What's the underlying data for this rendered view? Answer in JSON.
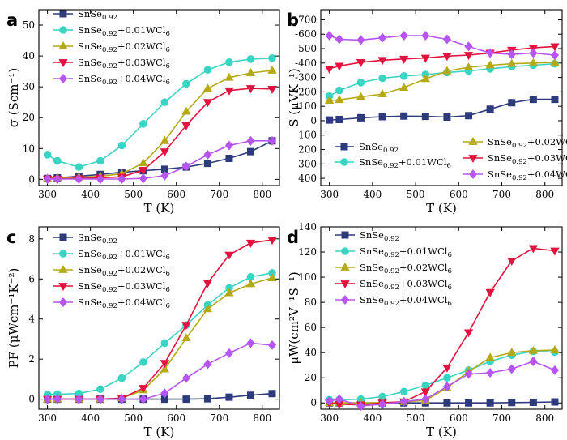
{
  "colors": {
    "SnSe0.92": "#2d3a7c",
    "+0.01WCl6": "#3ad4c4",
    "+0.02WCl6": "#b5aa16",
    "+0.03WCl6": "#e3123f",
    "+0.04WCl6": "#b755f2"
  },
  "legend_labels": {
    "base": "SnSe",
    "sub": "0.92",
    "suffix_01": "+0.01WCl",
    "suffix_02": "+0.02WCl",
    "suffix_03": "+0.03WCl",
    "suffix_04": "+0.04WCl",
    "suffix_sub": "6"
  },
  "chart_data": [
    {
      "panel": "a",
      "type": "line",
      "xlabel": "T (K)",
      "ylabel": "σ (Scm⁻¹)",
      "xlim": [
        280,
        840
      ],
      "ylim": [
        -2,
        55
      ],
      "xticks": [
        300,
        400,
        500,
        600,
        700,
        800
      ],
      "yticks": [
        0,
        10,
        20,
        30,
        40,
        50
      ],
      "legend_position": "top-left",
      "series": [
        {
          "key": "SnSe0.92",
          "marker": "square",
          "x": [
            300,
            323,
            373,
            423,
            473,
            523,
            573,
            623,
            673,
            723,
            773,
            823
          ],
          "y": [
            0.3,
            0.5,
            1.0,
            1.6,
            2.3,
            2.8,
            3.3,
            4.0,
            5.2,
            6.8,
            9.0,
            12.5
          ]
        },
        {
          "key": "+0.01WCl6",
          "marker": "circle",
          "x": [
            300,
            323,
            373,
            423,
            473,
            523,
            573,
            623,
            673,
            723,
            773,
            823
          ],
          "y": [
            8.0,
            6.0,
            4.0,
            6.0,
            11.0,
            18.0,
            25.0,
            31.0,
            35.5,
            38.0,
            39.0,
            39.3
          ]
        },
        {
          "key": "+0.02WCl6",
          "marker": "triangle-up",
          "x": [
            300,
            323,
            373,
            423,
            473,
            523,
            573,
            623,
            673,
            723,
            773,
            823
          ],
          "y": [
            0.3,
            0.5,
            0.7,
            1.0,
            1.8,
            5.3,
            12.5,
            22.0,
            29.5,
            33.0,
            34.5,
            35.3
          ]
        },
        {
          "key": "+0.03WCl6",
          "marker": "triangle-down",
          "x": [
            300,
            323,
            373,
            423,
            473,
            523,
            573,
            623,
            673,
            723,
            773,
            823
          ],
          "y": [
            0.2,
            0.2,
            0.3,
            0.5,
            0.8,
            3.0,
            9.0,
            17.5,
            25.0,
            28.8,
            29.5,
            29.3
          ]
        },
        {
          "key": "+0.04WCl6",
          "marker": "diamond",
          "x": [
            300,
            323,
            373,
            423,
            473,
            523,
            573,
            623,
            673,
            723,
            773,
            823
          ],
          "y": [
            0.1,
            0.1,
            0.1,
            0.1,
            0.1,
            0.3,
            1.2,
            4.2,
            8.0,
            11.0,
            12.5,
            12.5
          ]
        }
      ]
    },
    {
      "panel": "b",
      "type": "line",
      "xlabel": "T (K)",
      "ylabel": "S (μVK⁻¹)",
      "xlim": [
        280,
        840
      ],
      "ylim": [
        -770,
        450
      ],
      "inverted_y": true,
      "xticks": [
        300,
        400,
        500,
        600,
        700,
        800
      ],
      "yticks": [
        -700,
        -600,
        -500,
        -400,
        -300,
        -200,
        -100,
        0,
        100,
        200,
        300,
        400
      ],
      "legend_position": "bottom",
      "series": [
        {
          "key": "SnSe0.92",
          "marker": "square",
          "x": [
            300,
            323,
            373,
            423,
            473,
            523,
            573,
            623,
            673,
            723,
            773,
            823
          ],
          "y": [
            -5,
            -8,
            -20,
            -28,
            -32,
            -30,
            -25,
            -35,
            -80,
            -125,
            -148,
            -148
          ]
        },
        {
          "key": "+0.01WCl6",
          "marker": "circle",
          "x": [
            300,
            323,
            373,
            423,
            473,
            523,
            573,
            623,
            673,
            723,
            773,
            823
          ],
          "y": [
            -170,
            -210,
            -265,
            -295,
            -310,
            -320,
            -335,
            -345,
            -360,
            -375,
            -385,
            -395
          ]
        },
        {
          "key": "+0.02WCl6",
          "marker": "triangle-up",
          "x": [
            300,
            323,
            373,
            423,
            473,
            523,
            573,
            623,
            673,
            723,
            773,
            823
          ],
          "y": [
            -140,
            -145,
            -165,
            -185,
            -230,
            -290,
            -345,
            -370,
            -385,
            -395,
            -400,
            -405
          ]
        },
        {
          "key": "+0.03WCl6",
          "marker": "triangle-down",
          "x": [
            300,
            323,
            373,
            423,
            473,
            523,
            573,
            623,
            673,
            723,
            773,
            823
          ],
          "y": [
            -360,
            -380,
            -405,
            -420,
            -428,
            -435,
            -448,
            -455,
            -470,
            -490,
            -505,
            -515
          ]
        },
        {
          "key": "+0.04WCl6",
          "marker": "diamond",
          "x": [
            300,
            323,
            373,
            423,
            473,
            523,
            573,
            623,
            673,
            723,
            773,
            823
          ],
          "y": [
            -590,
            -565,
            -560,
            -575,
            -590,
            -590,
            -565,
            -515,
            -470,
            -460,
            -470,
            -455
          ]
        }
      ]
    },
    {
      "panel": "c",
      "type": "line",
      "xlabel": "T (K)",
      "ylabel": "PF (μWcm⁻¹K⁻²)",
      "xlim": [
        280,
        840
      ],
      "ylim": [
        -0.5,
        8.6
      ],
      "xticks": [
        300,
        400,
        500,
        600,
        700,
        800
      ],
      "yticks": [
        0,
        2,
        4,
        6,
        8
      ],
      "legend_position": "top-left",
      "series": [
        {
          "key": "SnSe0.92",
          "marker": "square",
          "x": [
            300,
            323,
            373,
            423,
            473,
            523,
            573,
            623,
            673,
            723,
            773,
            823
          ],
          "y": [
            0.0,
            0.0,
            0.0,
            0.0,
            0.0,
            0.0,
            0.0,
            0.0,
            0.02,
            0.1,
            0.2,
            0.28
          ]
        },
        {
          "key": "+0.01WCl6",
          "marker": "circle",
          "x": [
            300,
            323,
            373,
            423,
            473,
            523,
            573,
            623,
            673,
            723,
            773,
            823
          ],
          "y": [
            0.23,
            0.25,
            0.28,
            0.5,
            1.05,
            1.85,
            2.8,
            3.7,
            4.7,
            5.55,
            6.1,
            6.3
          ]
        },
        {
          "key": "+0.02WCl6",
          "marker": "triangle-up",
          "x": [
            300,
            323,
            373,
            423,
            473,
            523,
            573,
            623,
            673,
            723,
            773,
            823
          ],
          "y": [
            0.0,
            0.0,
            0.0,
            0.0,
            0.05,
            0.45,
            1.5,
            3.05,
            4.5,
            5.3,
            5.75,
            6.05
          ]
        },
        {
          "key": "+0.03WCl6",
          "marker": "triangle-down",
          "x": [
            300,
            323,
            373,
            423,
            473,
            523,
            573,
            623,
            673,
            723,
            773,
            823
          ],
          "y": [
            0.0,
            0.0,
            0.0,
            0.0,
            0.05,
            0.55,
            1.8,
            3.7,
            5.8,
            7.2,
            7.8,
            7.95
          ]
        },
        {
          "key": "+0.04WCl6",
          "marker": "diamond",
          "x": [
            300,
            323,
            373,
            423,
            473,
            523,
            573,
            623,
            673,
            723,
            773,
            823
          ],
          "y": [
            0.0,
            0.0,
            0.0,
            0.0,
            0.0,
            0.0,
            0.3,
            1.05,
            1.75,
            2.3,
            2.8,
            2.7
          ]
        }
      ]
    },
    {
      "panel": "d",
      "type": "line",
      "xlabel": "T (K)",
      "ylabel": "μW(cm²V⁻¹S⁻¹)",
      "xlim": [
        280,
        840
      ],
      "ylim": [
        -5,
        140
      ],
      "xticks": [
        300,
        400,
        500,
        600,
        700,
        800
      ],
      "yticks": [
        0,
        20,
        40,
        60,
        80,
        100,
        120,
        140
      ],
      "legend_position": "top-left",
      "series": [
        {
          "key": "SnSe0.92",
          "marker": "square",
          "x": [
            300,
            323,
            373,
            423,
            473,
            523,
            573,
            623,
            673,
            723,
            773,
            823
          ],
          "y": [
            0,
            0,
            0,
            0,
            0,
            0,
            0,
            0,
            0,
            0.3,
            0.5,
            0.8
          ]
        },
        {
          "key": "+0.01WCl6",
          "marker": "circle",
          "x": [
            300,
            323,
            373,
            423,
            473,
            523,
            573,
            623,
            673,
            723,
            773,
            823
          ],
          "y": [
            2.5,
            2.5,
            3.0,
            5.0,
            9.0,
            14.0,
            20.0,
            26.0,
            33.0,
            38.0,
            41.0,
            40.5
          ]
        },
        {
          "key": "+0.02WCl6",
          "marker": "triangle-up",
          "x": [
            300,
            323,
            373,
            423,
            473,
            523,
            573,
            623,
            673,
            723,
            773,
            823
          ],
          "y": [
            0.0,
            0.0,
            0.0,
            0.3,
            0.8,
            2.0,
            12.0,
            25.0,
            36.0,
            40.0,
            41.5,
            42.0
          ]
        },
        {
          "key": "+0.03WCl6",
          "marker": "triangle-down",
          "x": [
            300,
            323,
            373,
            423,
            473,
            523,
            573,
            623,
            673,
            723,
            773,
            823
          ],
          "y": [
            0.0,
            -1.0,
            -1.5,
            0.0,
            1.0,
            9.0,
            28.0,
            56.0,
            88.0,
            113.0,
            123.0,
            121.0
          ]
        },
        {
          "key": "+0.04WCl6",
          "marker": "diamond",
          "x": [
            300,
            323,
            373,
            423,
            473,
            523,
            573,
            623,
            673,
            723,
            773,
            823
          ],
          "y": [
            1.5,
            3.0,
            -2.5,
            -1.0,
            1.0,
            3.0,
            13.0,
            23.0,
            24.0,
            27.0,
            33.0,
            26.0
          ]
        }
      ]
    }
  ]
}
